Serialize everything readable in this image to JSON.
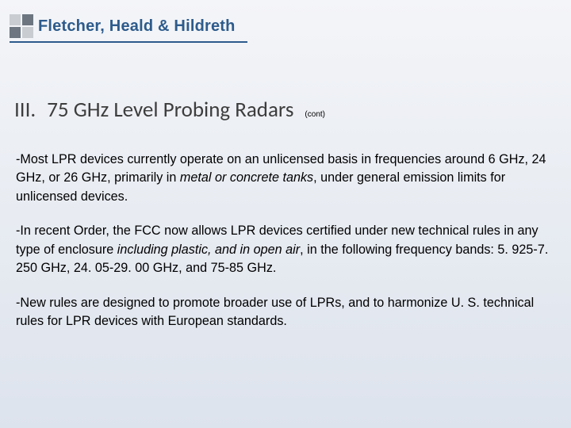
{
  "colors": {
    "bg_top": "#f4f5f8",
    "bg_bottom": "#dde3ed",
    "logo_sq_light": "#c9ccd1",
    "logo_sq_dark": "#6d7680",
    "company_text": "#2d5b8c",
    "hr_color": "#2d5b8c",
    "heading_text": "#3d3d3d",
    "body_text": "#000000"
  },
  "logo": {
    "grid": [
      "light",
      "dark",
      "dark",
      "light"
    ]
  },
  "company_name": "Fletcher, Heald & Hildreth",
  "heading": {
    "number": "III.",
    "title": "75 GHz Level Probing Radars",
    "cont": "(cont)"
  },
  "paragraphs": [
    {
      "prefix": "-Most LPR devices currently operate on an unlicensed basis in frequencies around 6 GHz, 24 GHz, or 26 GHz, primarily in ",
      "em1": "metal or concrete tanks",
      "suffix": ", under general emission limits for unlicensed devices."
    },
    {
      "prefix": "-In recent Order, the FCC now allows LPR devices certified under new technical rules in any type of enclosure ",
      "em1": "including plastic, and in open air",
      "suffix": ", in the following frequency bands:  5. 925‑7. 250 GHz, 24. 05‑29. 00 GHz, and 75‑85 GHz."
    },
    {
      "prefix": "-New rules are designed to promote broader use of LPRs, and to harmonize U. S. technical rules for LPR devices with European standards.",
      "em1": "",
      "suffix": ""
    }
  ]
}
